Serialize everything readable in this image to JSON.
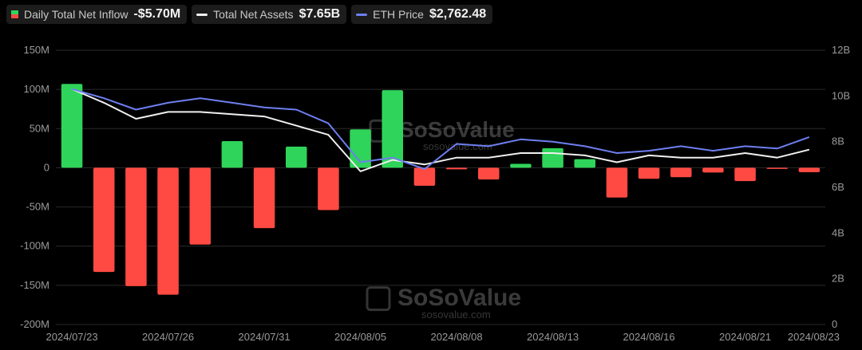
{
  "legend": {
    "inflow_label": "Daily Total Net Inflow",
    "inflow_value": "-$5.70M",
    "assets_label": "Total Net Assets",
    "assets_value": "$7.65B",
    "price_label": "ETH Price",
    "price_value": "$2,762.48"
  },
  "watermark": {
    "brand": "SoSoValue",
    "url": "sosovalue.com"
  },
  "colors": {
    "positive": "#2fd45a",
    "negative": "#ff4a43",
    "assets_line": "#f0f0f0",
    "price_line": "#6e7ff0",
    "grid": "#2a2a2a",
    "background": "#000000"
  },
  "chart_data": {
    "type": "bar",
    "categories": [
      "2024/07/23",
      "2024/07/24",
      "2024/07/25",
      "2024/07/26",
      "2024/07/29",
      "2024/07/30",
      "2024/07/31",
      "2024/08/01",
      "2024/08/02",
      "2024/08/05",
      "2024/08/06",
      "2024/08/07",
      "2024/08/08",
      "2024/08/09",
      "2024/08/12",
      "2024/08/13",
      "2024/08/14",
      "2024/08/15",
      "2024/08/16",
      "2024/08/19",
      "2024/08/20",
      "2024/08/21",
      "2024/08/22",
      "2024/08/23"
    ],
    "x_tick_labels": [
      "2024/07/23",
      "2024/07/26",
      "2024/07/31",
      "2024/08/05",
      "2024/08/08",
      "2024/08/13",
      "2024/08/16",
      "2024/08/21",
      "2024/08/23"
    ],
    "y_left": {
      "ylim": [
        -200,
        150
      ],
      "ticks": [
        "150M",
        "100M",
        "50M",
        "0",
        "-50M",
        "-100M",
        "-150M",
        "-200M"
      ],
      "tick_values": [
        150,
        100,
        50,
        0,
        -50,
        -100,
        -150,
        -200
      ]
    },
    "y_right": {
      "ylim": [
        0,
        12
      ],
      "ticks": [
        "12B",
        "10B",
        "8B",
        "6B",
        "4B",
        "2B",
        "0"
      ],
      "tick_values": [
        12,
        10,
        8,
        6,
        4,
        2,
        0
      ]
    },
    "series": [
      {
        "name": "Daily Total Net Inflow",
        "type": "bar",
        "axis": "left",
        "unit": "M",
        "values": [
          107,
          -133,
          -151,
          -162,
          -98,
          34,
          -77,
          27,
          -54,
          49,
          99,
          -23,
          -2,
          -15,
          5,
          25,
          11,
          -38,
          -14,
          -12,
          -6,
          -17,
          -1,
          -5.7
        ]
      },
      {
        "name": "Total Net Assets",
        "type": "line",
        "axis": "right",
        "unit": "B",
        "values": [
          10.3,
          9.7,
          9.0,
          9.3,
          9.3,
          9.2,
          9.1,
          8.7,
          8.3,
          6.7,
          7.2,
          7.0,
          7.3,
          7.3,
          7.5,
          7.5,
          7.4,
          7.1,
          7.4,
          7.3,
          7.3,
          7.5,
          7.3,
          7.65
        ]
      },
      {
        "name": "ETH Price",
        "type": "line",
        "axis": "right",
        "values": [
          10.3,
          9.9,
          9.4,
          9.7,
          9.9,
          9.7,
          9.5,
          9.4,
          8.8,
          7.1,
          7.3,
          6.8,
          7.9,
          7.8,
          8.1,
          8.0,
          7.8,
          7.5,
          7.6,
          7.8,
          7.6,
          7.8,
          7.7,
          8.2
        ]
      }
    ]
  }
}
